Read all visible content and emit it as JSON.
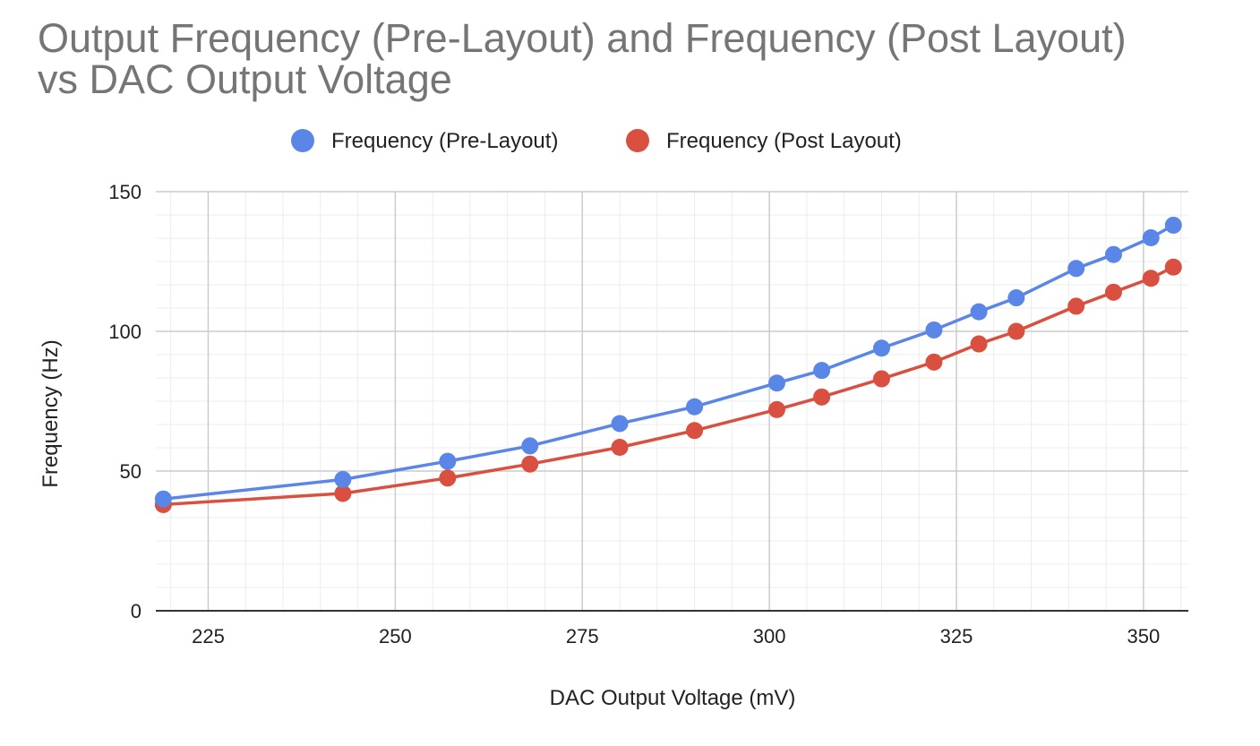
{
  "chart_data": {
    "type": "line",
    "title_line1": "Output Frequency (Pre-Layout) and Frequency (Post Layout)",
    "title_line2": "vs DAC Output Voltage",
    "xlabel": "DAC Output Voltage (mV)",
    "ylabel": "Frequency (Hz)",
    "xlim": [
      218,
      356
    ],
    "ylim": [
      0,
      150
    ],
    "x_ticks": [
      225,
      250,
      275,
      300,
      325,
      350
    ],
    "y_ticks": [
      0,
      50,
      100,
      150
    ],
    "x_minor_step": 5,
    "y_minor_step": 8.333,
    "grid": true,
    "legend_position": "top-center",
    "x": [
      219,
      243,
      257,
      268,
      280,
      290,
      301,
      307,
      315,
      322,
      328,
      333,
      341,
      346,
      351,
      354
    ],
    "series": [
      {
        "name": "Frequency (Pre-Layout)",
        "color": "#5a86e8",
        "values": [
          40,
          47,
          53.5,
          59,
          67,
          73,
          81.5,
          86,
          94,
          100.5,
          107,
          112,
          122.5,
          127.5,
          133.5,
          138
        ]
      },
      {
        "name": "Frequency (Post Layout)",
        "color": "#d95040",
        "values": [
          38,
          42,
          47.5,
          52.5,
          58.5,
          64.5,
          72,
          76.5,
          83,
          89,
          95.5,
          100,
          109,
          114,
          119,
          123
        ]
      }
    ]
  }
}
